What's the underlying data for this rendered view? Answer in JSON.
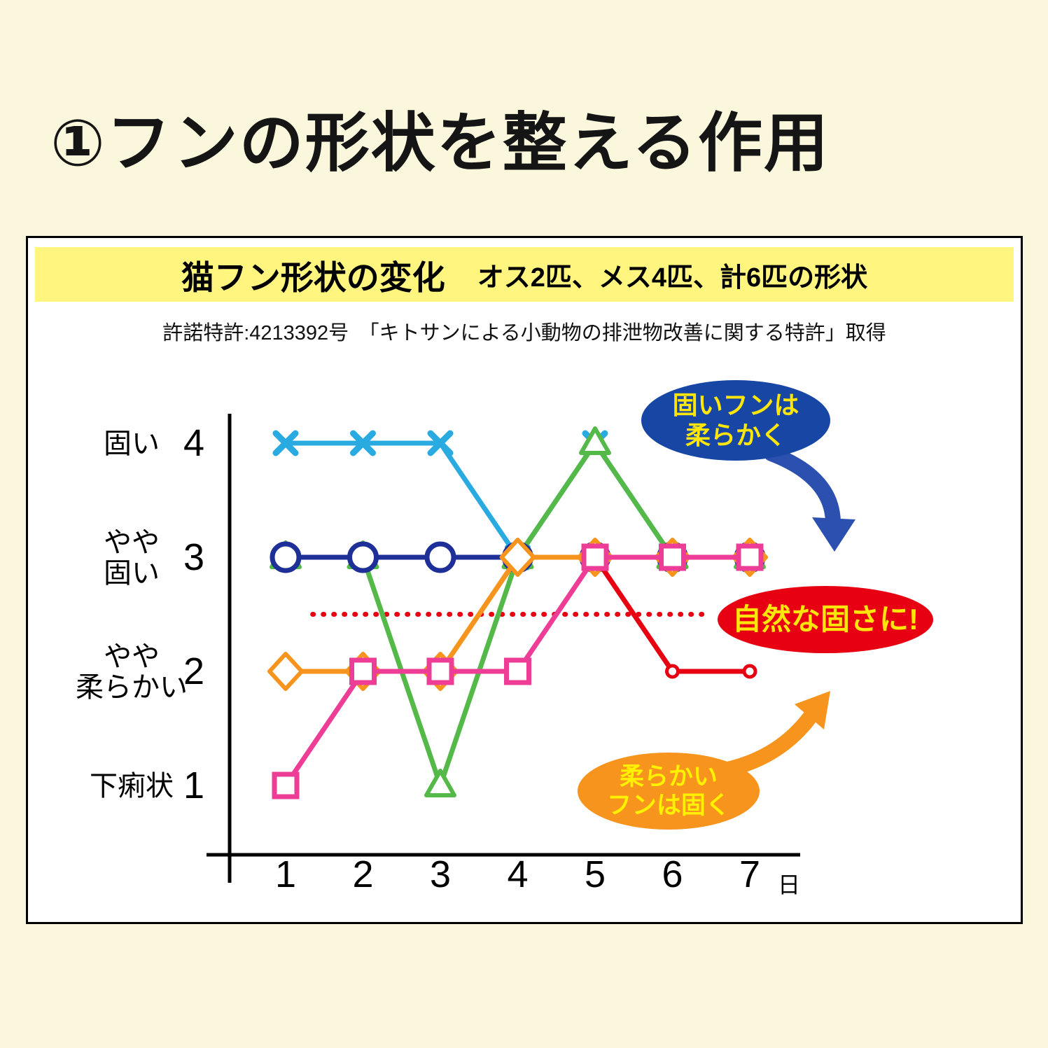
{
  "page": {
    "title": "①フンの形状を整える作用",
    "background_color": "#fbf7dc"
  },
  "panel": {
    "band_title": "猫フン形状の変化",
    "band_subtitle": "オス2匹、メス4匹、計6匹の形状",
    "band_color": "#fff57f",
    "patent_note": "許諾特許:4213392号　「キトサンによる小動物の排泄物改善に関する特許」取得"
  },
  "chart_data": {
    "type": "line",
    "title": "猫フン形状の変化",
    "subtitle": "オス2匹、メス4匹、計6匹の形状",
    "x": [
      1,
      2,
      3,
      4,
      5,
      6,
      7
    ],
    "x_unit": "日",
    "ylim": [
      0.5,
      4.5
    ],
    "grid": false,
    "legend": "none",
    "y_ticks": [
      {
        "value": 4,
        "label": [
          "固い"
        ]
      },
      {
        "value": 3,
        "label": [
          "やや",
          "固い"
        ]
      },
      {
        "value": 2,
        "label": [
          "やや",
          "柔らかい"
        ]
      },
      {
        "value": 1,
        "label": [
          "下痢状"
        ]
      }
    ],
    "series": [
      {
        "name": "light-blue-x",
        "marker": "x",
        "color": "#29abe2",
        "values": [
          4,
          4,
          4,
          3,
          4,
          3,
          3
        ]
      },
      {
        "name": "green-triangle",
        "marker": "triangle",
        "color": "#54b948",
        "values": [
          3,
          3,
          1,
          3,
          4,
          3,
          3
        ]
      },
      {
        "name": "navy-circle",
        "marker": "circle",
        "color": "#1e2f97",
        "values": [
          3,
          3,
          3,
          3,
          3,
          3,
          3
        ]
      },
      {
        "name": "orange-diamond",
        "marker": "diamond",
        "color": "#f7941d",
        "values": [
          2,
          2,
          2,
          3,
          3,
          3,
          3
        ]
      },
      {
        "name": "red-dot",
        "marker": "dot",
        "color": "#e60012",
        "values": [
          null,
          null,
          null,
          null,
          3,
          2,
          2
        ]
      },
      {
        "name": "pink-square",
        "marker": "square",
        "color": "#ee3d96",
        "values": [
          1,
          2,
          2,
          2,
          3,
          3,
          3
        ]
      }
    ],
    "reference_line": {
      "value": 2.5,
      "color": "#e60012",
      "style": "dotted",
      "x_start": 1.35,
      "x_end": 6.45
    },
    "annotations": [
      {
        "id": "hard-to-soft",
        "text": [
          "固いフンは",
          "柔らかく"
        ],
        "bg": "#1846a5",
        "fg": "#ffe60a"
      },
      {
        "id": "natural-firmness",
        "text": [
          "自然な固さに!"
        ],
        "bg": "#e60012",
        "fg": "#ffe60a"
      },
      {
        "id": "soft-to-hard",
        "text": [
          "柔らかい",
          "フンは固く"
        ],
        "bg": "#f7941d",
        "fg": "#fff100"
      }
    ]
  }
}
